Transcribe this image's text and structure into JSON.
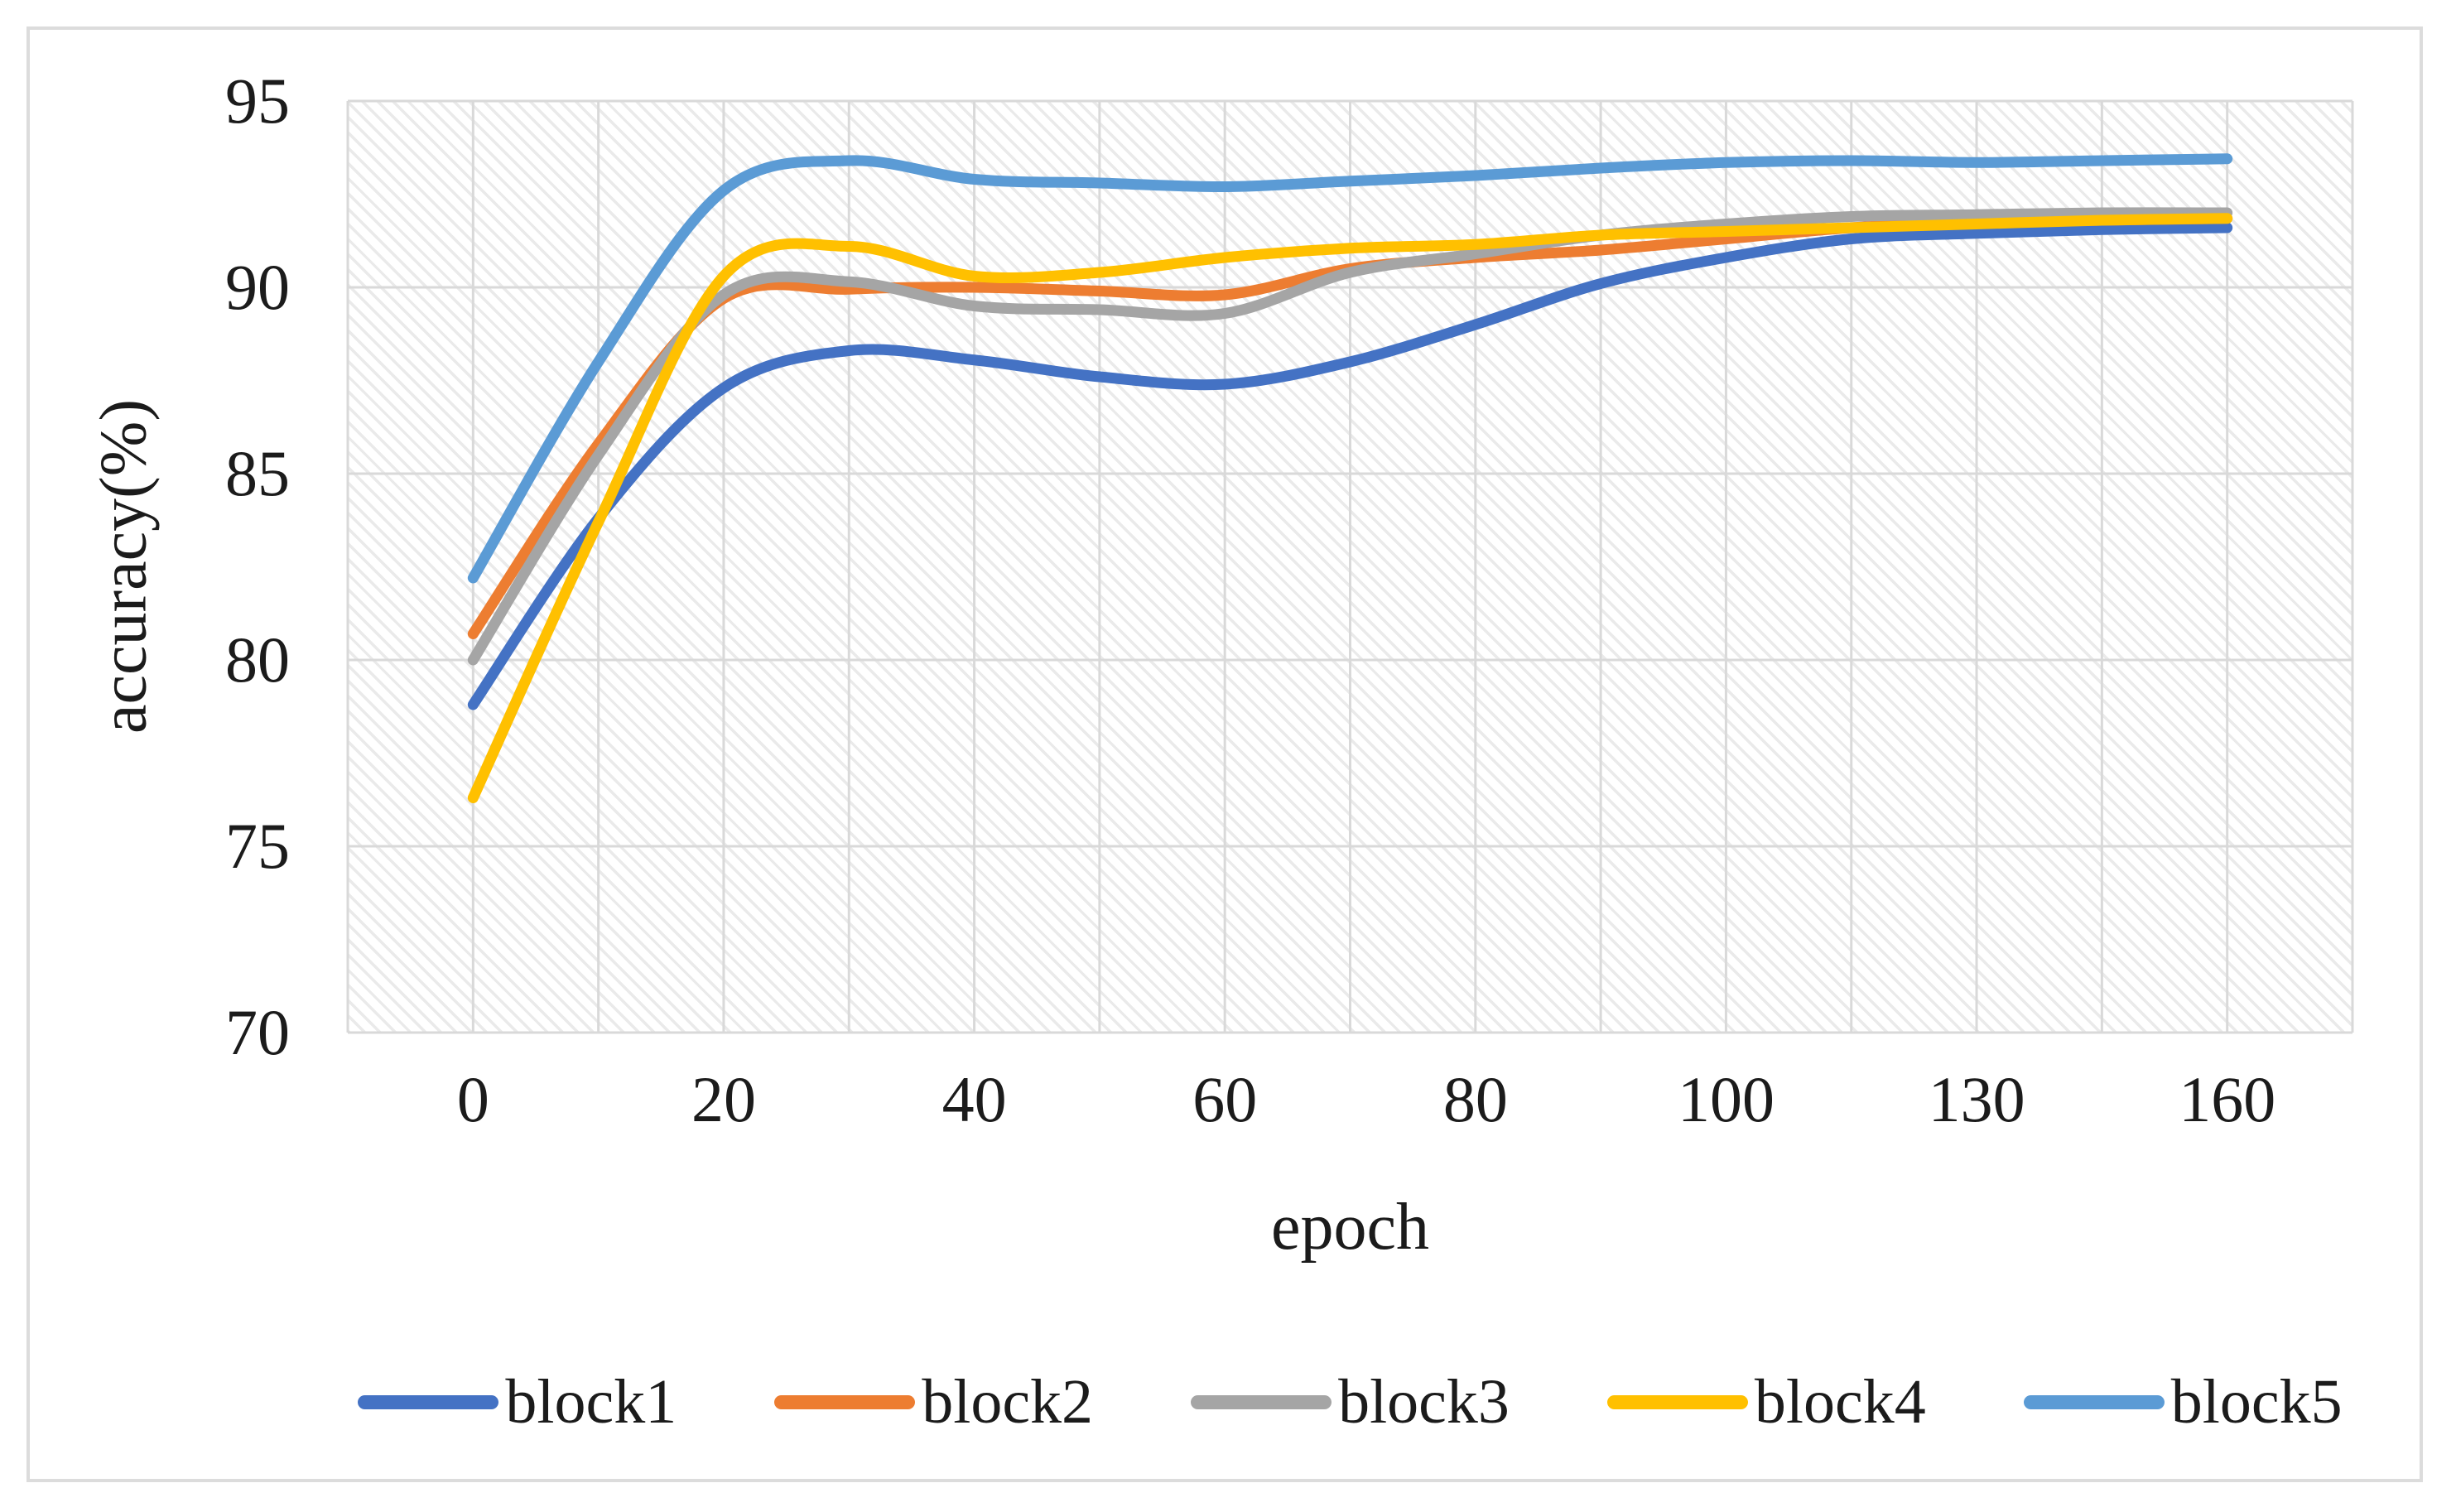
{
  "chart_data": {
    "type": "line",
    "title": "",
    "xlabel": "epoch",
    "ylabel": "accuracy(%)",
    "smoothed": true,
    "grid": true,
    "legend_position": "bottom",
    "plot_background": "light diagonal hatch",
    "ylim": [
      70,
      95
    ],
    "y_ticks": [
      95,
      90,
      85,
      80,
      75,
      70
    ],
    "x_axis": {
      "gridline_intervals": 16,
      "data_start_gridline": 1,
      "tick_labels": [
        {
          "label": "0",
          "gridline": 1
        },
        {
          "label": "20",
          "gridline": 3
        },
        {
          "label": "40",
          "gridline": 5
        },
        {
          "label": "60",
          "gridline": 7
        },
        {
          "label": "80",
          "gridline": 9
        },
        {
          "label": "100",
          "gridline": 11
        },
        {
          "label": "130",
          "gridline": 13
        },
        {
          "label": "160",
          "gridline": 15
        }
      ]
    },
    "x_categories": [
      0,
      10,
      20,
      30,
      40,
      50,
      60,
      70,
      80,
      90,
      100,
      115,
      130,
      145,
      160
    ],
    "series": [
      {
        "name": "block1",
        "color": "#4472C4",
        "values": [
          78.8,
          83.8,
          87.3,
          88.3,
          88.05,
          87.6,
          87.4,
          88.0,
          89.0,
          90.1,
          90.8,
          91.3,
          91.45,
          91.55,
          91.6
        ]
      },
      {
        "name": "block2",
        "color": "#ED7D31",
        "values": [
          80.7,
          85.8,
          89.7,
          89.95,
          90.0,
          89.9,
          89.8,
          90.5,
          90.8,
          91.0,
          91.3,
          91.6,
          91.75,
          91.8,
          91.85
        ]
      },
      {
        "name": "block3",
        "color": "#A5A5A5",
        "values": [
          80.0,
          85.5,
          89.8,
          90.15,
          89.5,
          89.4,
          89.3,
          90.4,
          90.9,
          91.4,
          91.7,
          91.9,
          91.95,
          92.0,
          92.0
        ]
      },
      {
        "name": "block4",
        "color": "#FFC000",
        "values": [
          76.3,
          83.7,
          90.3,
          91.1,
          90.3,
          90.4,
          90.8,
          91.05,
          91.15,
          91.4,
          91.5,
          91.6,
          91.7,
          91.8,
          91.85
        ]
      },
      {
        "name": "block5",
        "color": "#5B9BD5",
        "values": [
          82.2,
          88.0,
          92.6,
          93.4,
          92.9,
          92.8,
          92.7,
          92.85,
          93.0,
          93.2,
          93.35,
          93.4,
          93.35,
          93.4,
          93.45
        ]
      }
    ],
    "style": {
      "gridline_color": "#d9d9d9",
      "plot_border_color": "#d9d9d9",
      "hatch_color": "#eaeaea",
      "figure_border_color": "#dcdcdc",
      "text_color": "#1b1b1b",
      "background": "#ffffff",
      "line_width": 13
    }
  }
}
